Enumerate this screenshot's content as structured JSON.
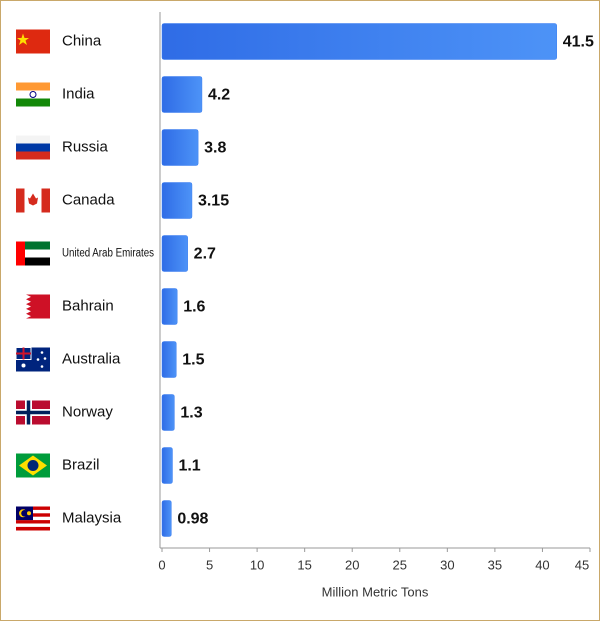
{
  "chart_data": {
    "type": "bar",
    "orientation": "horizontal",
    "categories": [
      "China",
      "India",
      "Russia",
      "Canada",
      "United Arab Emirates",
      "Bahrain",
      "Australia",
      "Norway",
      "Brazil",
      "Malaysia"
    ],
    "values": [
      41.5,
      4.2,
      3.8,
      3.15,
      2.7,
      1.6,
      1.5,
      1.3,
      1.1,
      0.98
    ],
    "color": "#3a7df0",
    "xlim": [
      0,
      45
    ],
    "xticks": [
      0,
      5,
      10,
      15,
      20,
      25,
      30,
      35,
      40,
      45
    ],
    "xlabel": "Million Metric Tons"
  }
}
